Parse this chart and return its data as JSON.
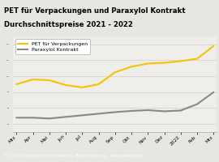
{
  "title_line1": "PET für Verpackungen und Paraxylol Kontrakt",
  "title_line2": "Durchschnittspreise 2021 - 2022",
  "title_bg": "#f5c400",
  "title_color": "#000000",
  "footer_text": "© 2022 Kunststoff Information, Bad Homburg - www.kiweb.de",
  "footer_bg": "#7a7a7a",
  "footer_color": "#ffffff",
  "x_labels": [
    "Mrz",
    "Apr",
    "Mai",
    "Jun",
    "Jul",
    "Aug",
    "Sep",
    "Okt",
    "Nov",
    "Dez",
    "2022",
    "Feb",
    "Mrz"
  ],
  "pet_values": [
    900,
    960,
    950,
    890,
    860,
    900,
    1050,
    1120,
    1160,
    1170,
    1190,
    1220,
    1380
  ],
  "paraxylol_values": [
    480,
    480,
    470,
    490,
    510,
    530,
    550,
    565,
    575,
    560,
    570,
    650,
    800
  ],
  "pet_color": "#f5c400",
  "paraxylol_color": "#888888",
  "line_width": 1.5,
  "chart_bg": "#e8e6e0",
  "plot_bg": "#f0eeea",
  "legend_pet": "PET für Verpackungen",
  "legend_paraxylol": "Paraxylol Kontrakt",
  "ylim": [
    300,
    1500
  ],
  "title_fontsize": 6.2,
  "tick_fontsize": 4.2,
  "legend_fontsize": 4.5,
  "footer_fontsize": 4.0
}
